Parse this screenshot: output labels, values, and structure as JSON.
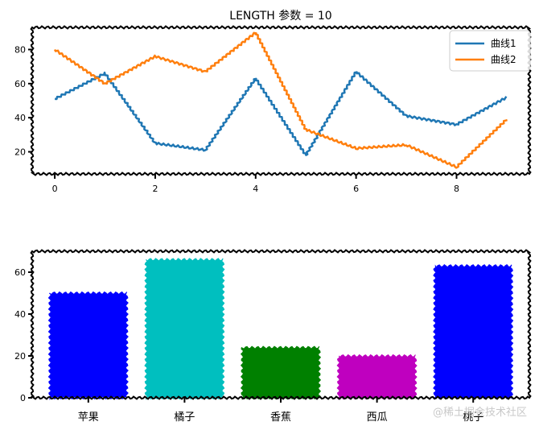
{
  "watermark": "@稀土掘金技术社区",
  "chart_data": [
    {
      "type": "line",
      "title": "LENGTH 参数 = 10",
      "x": [
        0,
        1,
        2,
        3,
        4,
        5,
        6,
        7,
        8,
        9
      ],
      "xticks": [
        0,
        2,
        4,
        6,
        8
      ],
      "yticks": [
        20,
        40,
        60,
        80
      ],
      "xlim": [
        -0.45,
        9.45
      ],
      "ylim": [
        7,
        93
      ],
      "legend": "top-right",
      "series": [
        {
          "name": "曲线1",
          "color": "#1f77b4",
          "values": [
            51,
            66,
            25,
            21,
            63,
            18,
            67,
            41,
            36,
            52
          ]
        },
        {
          "name": "曲线2",
          "color": "#ff7f0e",
          "values": [
            80,
            60,
            76,
            67,
            90,
            33,
            22,
            24,
            11,
            39
          ]
        }
      ]
    },
    {
      "type": "bar",
      "categories": [
        "苹果",
        "橘子",
        "香蕉",
        "西瓜",
        "桃子"
      ],
      "values": [
        50,
        66,
        24,
        20,
        63
      ],
      "colors": [
        "#0000ff",
        "#00bfbf",
        "#008000",
        "#bf00bf",
        "#0000ff"
      ],
      "yticks": [
        0,
        20,
        40,
        60
      ],
      "ylim": [
        0,
        70
      ]
    }
  ]
}
